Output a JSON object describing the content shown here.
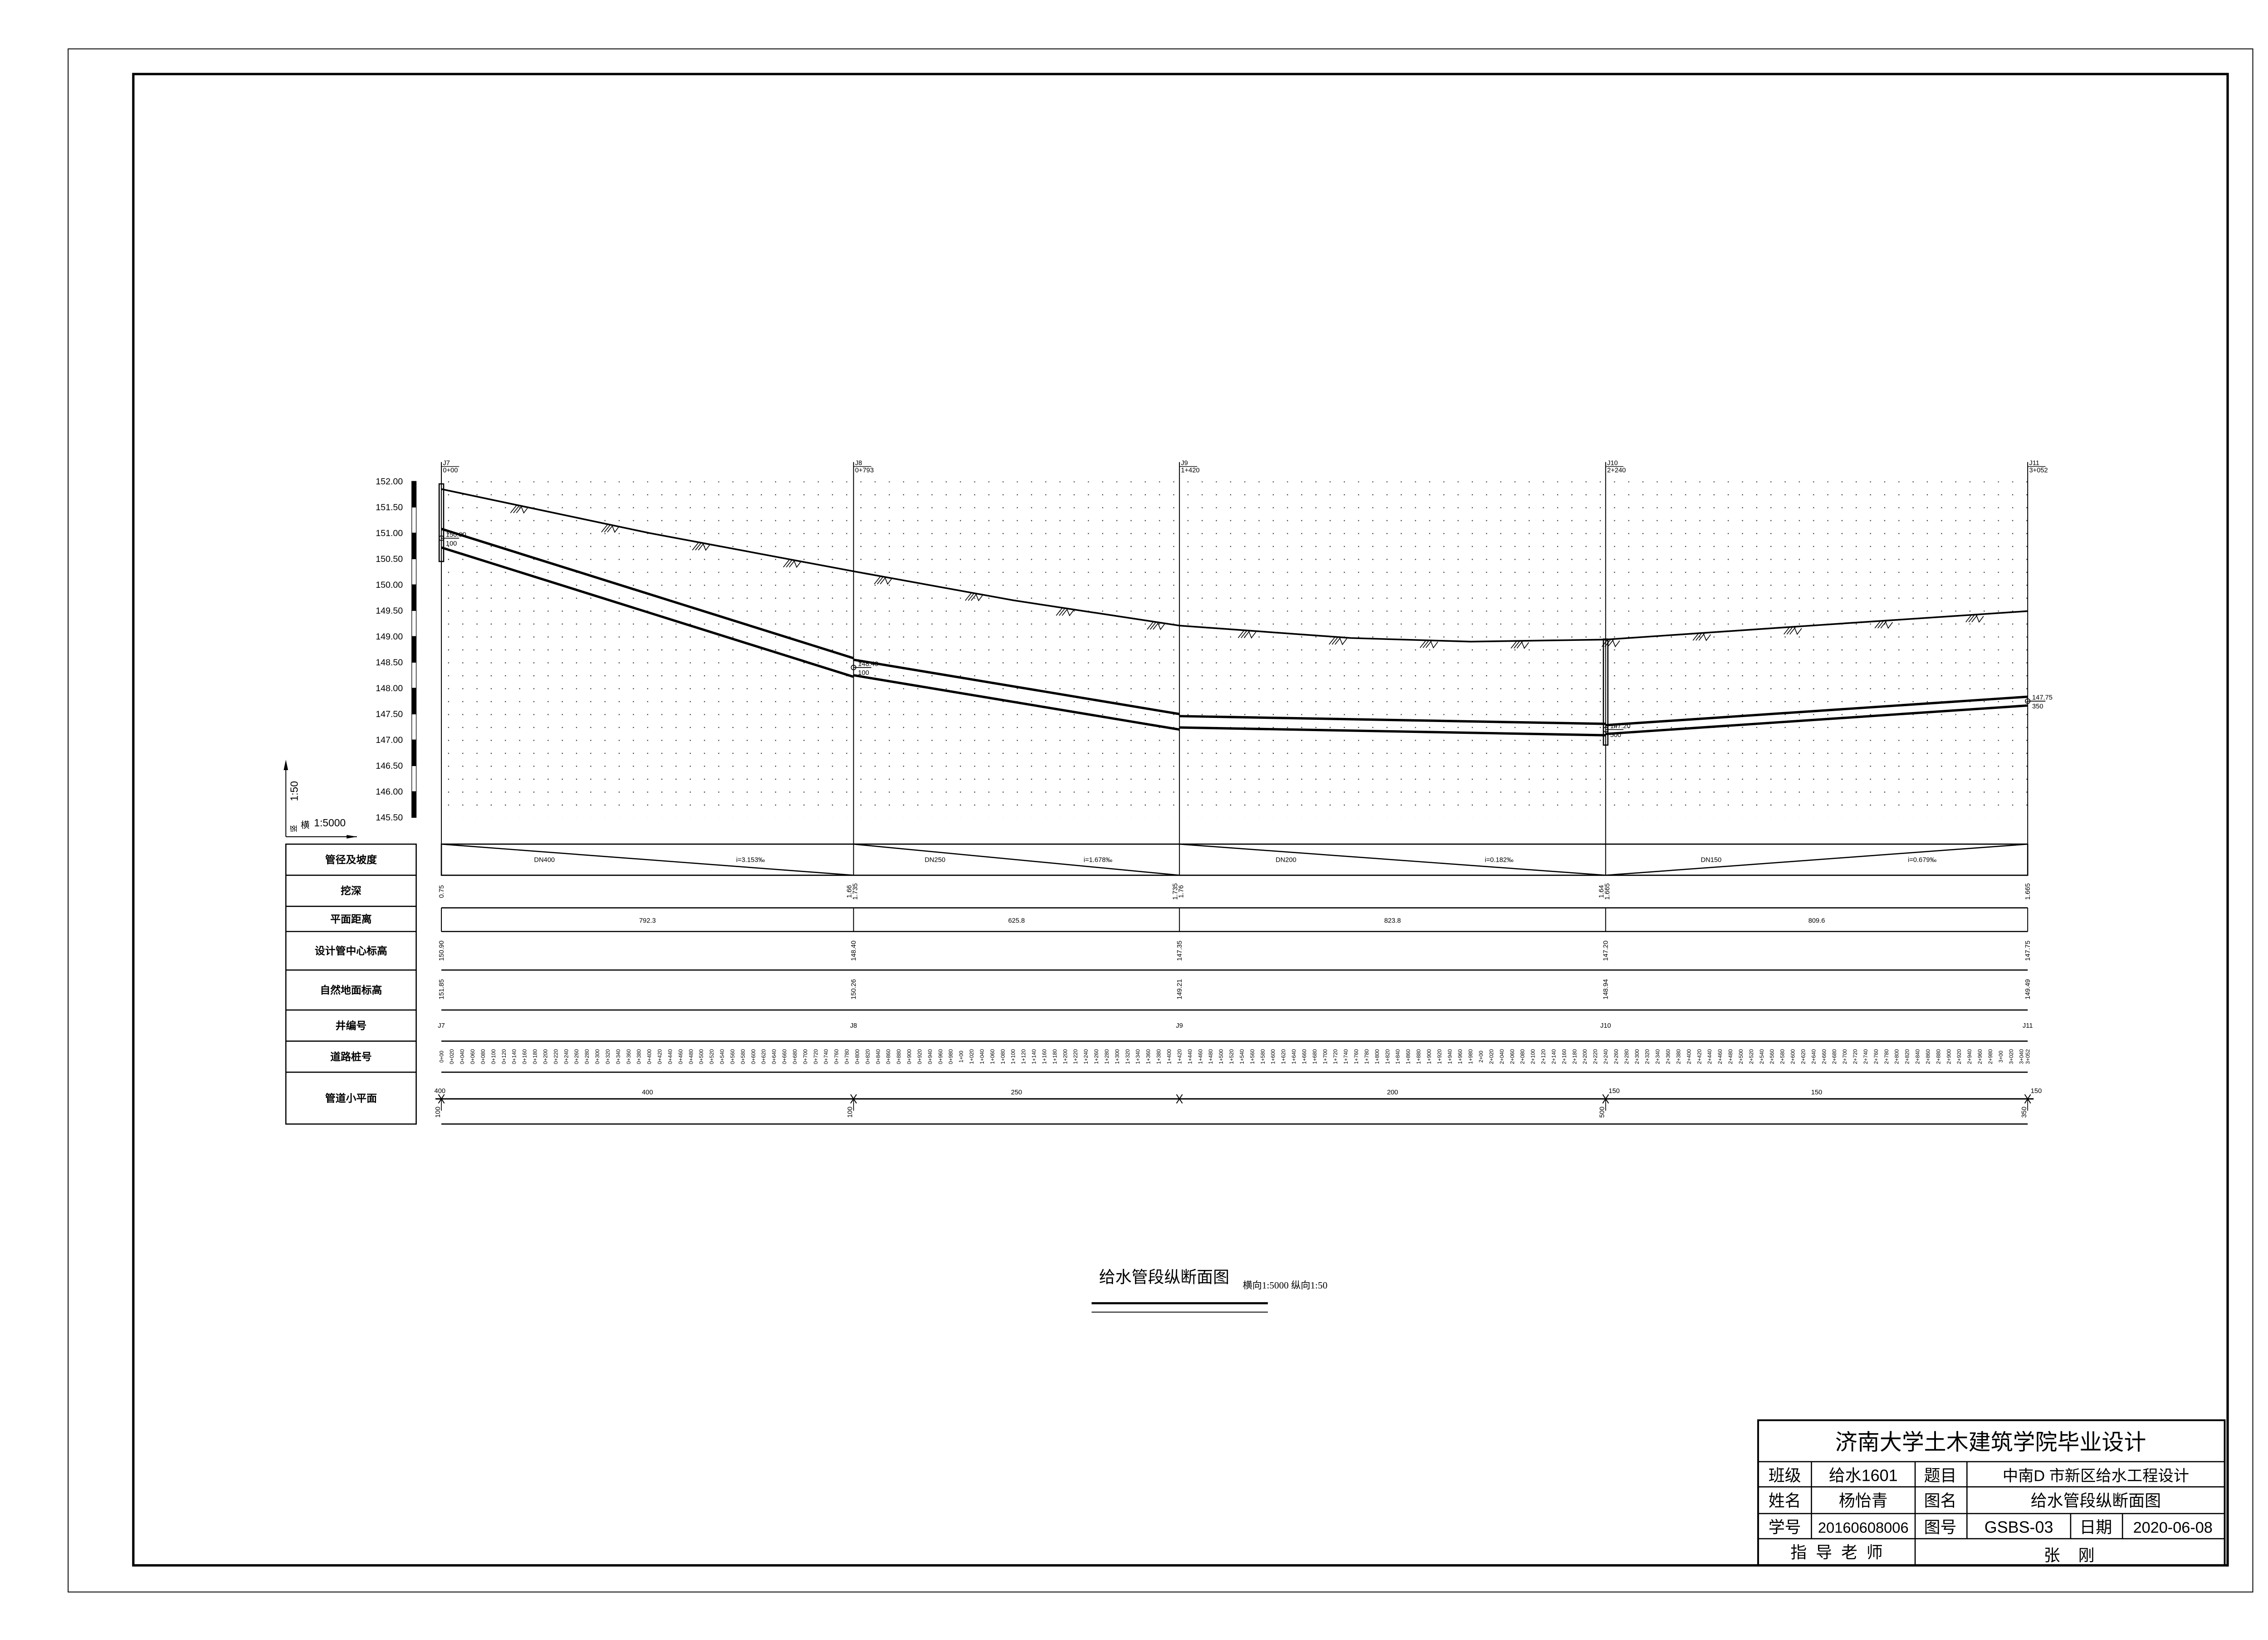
{
  "drawing": {
    "title": "给水管段纵断面图",
    "scale_note": "横向1:5000 纵向1:50"
  },
  "scale_legend": {
    "vertical_label": "竖",
    "vertical_scale": "1:50",
    "horizontal_label": "横",
    "horizontal_scale": "1:5000"
  },
  "profile": {
    "elevation_ticks": [
      "152.00",
      "151.50",
      "151.00",
      "150.50",
      "150.00",
      "149.50",
      "149.00",
      "148.50",
      "148.00",
      "147.50",
      "147.00",
      "146.50",
      "146.00",
      "145.50"
    ],
    "elevation_range": [
      145.5,
      152.0
    ],
    "station_range_m": [
      0,
      3052
    ],
    "junctions": [
      {
        "id": "J7",
        "station": "0+00",
        "station_m": 0,
        "ground": 151.85,
        "pipe_center": 150.9,
        "pipe_label": "150.90",
        "pipe_sub": "100"
      },
      {
        "id": "J8",
        "station": "0+793",
        "station_m": 793,
        "ground": 150.26,
        "pipe_center": 148.4,
        "pipe_label": "148.40",
        "pipe_sub": "100"
      },
      {
        "id": "J9",
        "station": "1+420",
        "station_m": 1420,
        "ground": 149.21,
        "pipe_center": 147.35,
        "pipe_label": "",
        "pipe_sub": ""
      },
      {
        "id": "J10",
        "station": "2+240",
        "station_m": 2240,
        "ground": 148.94,
        "pipe_center": 147.2,
        "pipe_label": "147.20",
        "pipe_sub": "500"
      },
      {
        "id": "J11",
        "station": "3+052",
        "station_m": 3052,
        "ground": 149.49,
        "pipe_center": 147.75,
        "pipe_label": "147.75",
        "pipe_sub": "350"
      }
    ],
    "ground_profile": [
      [
        0,
        151.85
      ],
      [
        400,
        151.0
      ],
      [
        793,
        150.26
      ],
      [
        1100,
        149.7
      ],
      [
        1420,
        149.21
      ],
      [
        1750,
        148.97
      ],
      [
        1980,
        148.9
      ],
      [
        2240,
        148.94
      ],
      [
        2650,
        149.22
      ],
      [
        3052,
        149.49
      ]
    ]
  },
  "table": {
    "row_labels": [
      "管径及坡度",
      "挖深",
      "平面距离",
      "设计管中心标高",
      "自然地面标高",
      "井编号",
      "道路桩号",
      "管道小平面"
    ],
    "segments": [
      {
        "dn": "DN400",
        "slope": "i=3.153‰",
        "length": "792.3",
        "plan_dn": "400"
      },
      {
        "dn": "DN250",
        "slope": "i=1.678‰",
        "length": "625.8",
        "plan_dn": "250"
      },
      {
        "dn": "DN200",
        "slope": "i=0.182‰",
        "length": "823.8",
        "plan_dn": "200"
      },
      {
        "dn": "DN150",
        "slope": "i=0.679‰",
        "length": "809.6",
        "plan_dn": "150"
      }
    ],
    "depths": [
      [
        "0.75"
      ],
      [
        "1.66",
        "1.735"
      ],
      [
        "1.735",
        "1.76"
      ],
      [
        "1.64",
        "1.665"
      ],
      [
        "1.665"
      ]
    ],
    "design_elevations": [
      "150.90",
      "148.40",
      "147.35",
      "147.20",
      "147.75"
    ],
    "ground_elevations": [
      "151.85",
      "150.26",
      "149.21",
      "148.94",
      "149.49"
    ],
    "well_ids": [
      "J7",
      "J8",
      "J9",
      "J10",
      "J11"
    ],
    "plan_node_labels": [
      {
        "above": "400",
        "below": "100"
      },
      {
        "above": "",
        "below": "100"
      },
      {
        "above": "",
        "below": ""
      },
      {
        "above": "150",
        "below": "500"
      },
      {
        "above": "150",
        "below": "350"
      }
    ],
    "stations": [
      "0+00",
      "0+020",
      "0+040",
      "0+060",
      "0+080",
      "0+100",
      "0+120",
      "0+140",
      "0+160",
      "0+180",
      "0+200",
      "0+220",
      "0+240",
      "0+260",
      "0+280",
      "0+300",
      "0+320",
      "0+340",
      "0+360",
      "0+380",
      "0+400",
      "0+420",
      "0+440",
      "0+460",
      "0+480",
      "0+500",
      "0+520",
      "0+540",
      "0+560",
      "0+580",
      "0+600",
      "0+620",
      "0+640",
      "0+660",
      "0+680",
      "0+700",
      "0+720",
      "0+740",
      "0+760",
      "0+780",
      "0+800",
      "0+820",
      "0+840",
      "0+860",
      "0+880",
      "0+900",
      "0+920",
      "0+940",
      "0+960",
      "0+980",
      "1+00",
      "1+020",
      "1+040",
      "1+060",
      "1+080",
      "1+100",
      "1+120",
      "1+140",
      "1+160",
      "1+180",
      "1+200",
      "1+220",
      "1+240",
      "1+260",
      "1+280",
      "1+300",
      "1+320",
      "1+340",
      "1+360",
      "1+380",
      "1+400",
      "1+420",
      "1+440",
      "1+460",
      "1+480",
      "1+500",
      "1+520",
      "1+540",
      "1+560",
      "1+580",
      "1+600",
      "1+620",
      "1+640",
      "1+660",
      "1+680",
      "1+700",
      "1+720",
      "1+740",
      "1+760",
      "1+780",
      "1+800",
      "1+820",
      "1+840",
      "1+860",
      "1+880",
      "1+900",
      "1+920",
      "1+940",
      "1+960",
      "1+980",
      "2+00",
      "2+020",
      "2+040",
      "2+060",
      "2+080",
      "2+100",
      "2+120",
      "2+140",
      "2+160",
      "2+180",
      "2+200",
      "2+220",
      "2+240",
      "2+260",
      "2+280",
      "2+300",
      "2+320",
      "2+340",
      "2+360",
      "2+380",
      "2+400",
      "2+420",
      "2+440",
      "2+460",
      "2+480",
      "2+500",
      "2+520",
      "2+540",
      "2+560",
      "2+580",
      "2+600",
      "2+620",
      "2+640",
      "2+660",
      "2+680",
      "2+700",
      "2+720",
      "2+740",
      "2+760",
      "2+780",
      "2+800",
      "2+820",
      "2+840",
      "2+860",
      "2+880",
      "2+900",
      "2+920",
      "2+940",
      "2+960",
      "2+980",
      "3+00",
      "3+020",
      "3+040",
      "3+052"
    ]
  },
  "title_block": {
    "school": "济南大学土木建筑学院毕业设计",
    "class_label": "班级",
    "class_value": "给水1601",
    "topic_label": "题目",
    "topic_value": "中南D 市新区给水工程设计",
    "name_label": "姓名",
    "name_value": "杨怡青",
    "drawing_name_label": "图名",
    "drawing_name_value": "给水管段纵断面图",
    "student_id_label": "学号",
    "student_id_value": "20160608006",
    "drawing_no_label": "图号",
    "drawing_no_value": "GSBS-03",
    "date_label": "日期",
    "date_value": "2020-06-08",
    "advisor_label": "指  导  老  师",
    "advisor_value": "张    刚"
  }
}
